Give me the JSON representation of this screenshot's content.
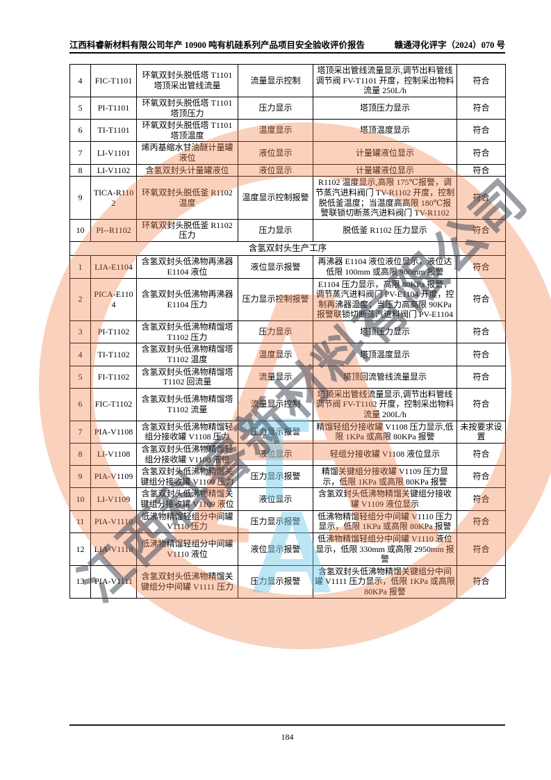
{
  "header": {
    "left": "江西科睿新材料有限公司年产 10900 吨有机硅系列产品项目安全验收评价报告",
    "right": "赣通浔化评字（2024）070 号"
  },
  "footer": {
    "page_number": "184"
  },
  "watermark": {
    "company_text": "江西科睿新材料有限公司",
    "logo_letter": "A",
    "ta_top": "T",
    "ta_bottom": "A",
    "ring_color": "#F1793F",
    "text_color": "#39404E",
    "ta_color": "#6FC9E8"
  },
  "table": {
    "section_header": "含氢双封头生产工序",
    "section1_rows": [
      {
        "no": "4",
        "tag": "FIC-T1101",
        "desc": "环氧双封头脱低塔 T1101 塔顶采出管线流量",
        "type": "流量显示控制",
        "detail": "塔顶采出管线流量显示,调节出料管线调节阀 FV-T1101 开度，控制采出物料流量 250L/h",
        "result": "符合"
      },
      {
        "no": "5",
        "tag": "PI-T1101",
        "desc": "环氧双封头脱低塔 T1101 塔顶压力",
        "type": "压力显示",
        "detail": "塔顶压力显示",
        "result": "符合"
      },
      {
        "no": "6",
        "tag": "TI-T1101",
        "desc": "环氧双封头脱低塔 T1101 塔顶温度",
        "type": "温度显示",
        "detail": "塔顶温度显示",
        "result": "符合"
      },
      {
        "no": "7",
        "tag": "LI-V1101",
        "desc": "烯丙基缩水甘油醚计量罐液位",
        "type": "液位显示",
        "detail": "计量罐液位显示",
        "result": "符合"
      },
      {
        "no": "8",
        "tag": "LI-V1102",
        "desc": "含氢双封头计量罐液位",
        "type": "液位显示",
        "detail": "计量罐液位显示",
        "result": "符合"
      },
      {
        "no": "9",
        "tag": "TICA-R1102",
        "desc": "环氧双封头脱低釜 R1102 温度",
        "type": "温度显示控制报警",
        "detail": "R1102 温度显示,高限 175℃报警，调节蒸汽进料阀门 TV-R1102 开度，控制脱低釜温度；当温度高高限 180℃报警联锁切断蒸汽进料阀门 TV-R1102",
        "result": "符合"
      },
      {
        "no": "10",
        "tag": "PI--R1102",
        "desc": "环氧双封头脱低釜 R1102 压力",
        "type": "压力显示",
        "detail": "脱低釜 R1102 压力显示",
        "result": "符合"
      }
    ],
    "section2_rows": [
      {
        "no": "1",
        "tag": "LIA-E1104",
        "desc": "含氢双封头低沸物再沸器 E1104 液位",
        "type": "液位显示报警",
        "detail": "再沸器 E1104 液位液位显示，液位达低限 100mm 或高限 900mm 报警",
        "result": "符合"
      },
      {
        "no": "2",
        "tag": "PICA-E1104",
        "desc": "含氢双封头低沸物再沸器 E1104 压力",
        "type": "压力显示控制报警",
        "detail": "E1104 压力显示，高限 80KPa 报警，调节蒸汽进料阀门 PV-E1104 开度，控制再沸器温度；当压力高高限 90KPa 报警联锁切断蒸汽进料阀门 PV-E1104",
        "result": "符合"
      },
      {
        "no": "3",
        "tag": "PI-T1102",
        "desc": "含氢双封头低沸物精馏塔 T1102 压力",
        "type": "压力显示",
        "detail": "塔顶压力显示",
        "result": "符合"
      },
      {
        "no": "4",
        "tag": "TI-T1102",
        "desc": "含氢双封头低沸物精馏塔 T1102 温度",
        "type": "温度显示",
        "detail": "塔顶温度显示",
        "result": "符合"
      },
      {
        "no": "5",
        "tag": "FI-T1102",
        "desc": "含氢双封头低沸物精馏塔 T1102 回流量",
        "type": "流量显示",
        "detail": "塔顶回流管线流量显示",
        "result": "符合"
      },
      {
        "no": "6",
        "tag": "FIC-T1102",
        "desc": "含氢双封头低沸物精馏塔 T1102 流量",
        "type": "流量显示控制",
        "detail": "塔顶采出管线流量显示,调节出料管线调节阀 FV-T1102 开度，控制采出物料流量 200L/h",
        "result": "符合"
      },
      {
        "no": "7",
        "tag": "PIA-V1108",
        "desc": "含氢双封头低沸物精馏轻组分接收罐 V1108 压力",
        "type": "压力显示报警",
        "detail": "精馏轻组分接收罐 V1108 压力显示,低限 1KPa 或高限 80KPa 报警",
        "result": "未按要求设置"
      },
      {
        "no": "8",
        "tag": "LI-V1108",
        "desc": "含氢双封头低沸物精馏轻组分接收罐 V1108 液位",
        "type": "液位显示",
        "detail": "轻组分接收罐 V1108 液位显示",
        "result": "符合"
      },
      {
        "no": "9",
        "tag": "PIA-V1109",
        "desc": "含氢双封头低沸物精馏关键组分接收罐 V1109 压力",
        "type": "压力显示报警",
        "detail": "精馏关键组分接收罐 V1109 压力显示，低限 1KPa 或高限 80KPa 报警",
        "result": "符合"
      },
      {
        "no": "10",
        "tag": "LI-V1109",
        "desc": "含氢双封头低沸物精馏关键组分接收罐 V1109 液位",
        "type": "液位显示",
        "detail": "含氢双封头低沸物精馏关键组分接收罐 V1109 液位显示",
        "result": "符合"
      },
      {
        "no": "11",
        "tag": "PIA-V1110",
        "desc": "低沸物精馏轻组分中间罐 V1110 压力",
        "type": "压力显示报警",
        "detail": "低沸物精馏轻组分中间罐 V1110 压力显示，低限 1KPa 或高限 80KPa 报警",
        "result": "符合"
      },
      {
        "no": "12",
        "tag": "LIA-V1110",
        "desc": "低沸物精馏轻组分中间罐 V1110 液位",
        "type": "液位显示报警",
        "detail": "低沸物精馏轻组分中间罐 V1110 液位显示，低限 330mm 或高限 2950mm 报警",
        "result": "符合"
      },
      {
        "no": "13",
        "tag": "PIA-V1111",
        "desc": "含氢双封头低沸物精馏关键组分中间罐 V1111 压力",
        "type": "压力显示报警",
        "detail": "含氢双封头低沸物精馏关键组分中间罐 V1111 压力显示，低限 1KPa 或高限 80KPa 报警",
        "result": "符合"
      }
    ]
  }
}
